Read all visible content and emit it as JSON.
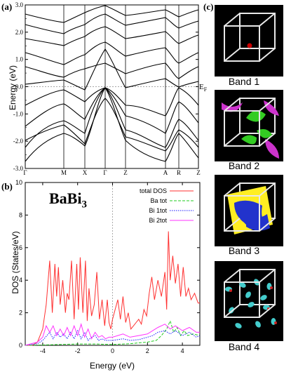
{
  "panels": {
    "a": "(a)",
    "b": "(b)",
    "c": "(c)"
  },
  "band_structure": {
    "ylabel": "Energy (eV)",
    "yticks": [
      "-3.0",
      "-2.0",
      "-1.0",
      "0.0",
      "1.0",
      "2.0",
      "3.0"
    ],
    "kpoints": [
      "Γ",
      "M",
      "X",
      "Γ",
      "Z",
      "A",
      "R",
      "Z"
    ],
    "fermi_label": "E",
    "fermi_sub": "F"
  },
  "chart_data": {
    "type": "line",
    "title": "BaBi",
    "title_sub": "3",
    "xlabel": "Energy (eV)",
    "ylabel": "DOS (States/eV)",
    "xlim": [
      -5,
      5
    ],
    "ylim": [
      0,
      10
    ],
    "xticks": [
      "-4",
      "-2",
      "0",
      "2",
      "4"
    ],
    "yticks": [
      "0",
      "2",
      "4",
      "6",
      "8",
      "10"
    ],
    "legend_position": "top-right",
    "series": [
      {
        "name": "total DOS",
        "color": "#ff3030",
        "style": "solid",
        "x": [
          -5,
          -4.6,
          -4.3,
          -4.0,
          -3.8,
          -3.6,
          -3.45,
          -3.3,
          -3.2,
          -3.1,
          -3.0,
          -2.85,
          -2.7,
          -2.6,
          -2.5,
          -2.35,
          -2.2,
          -2.05,
          -1.95,
          -1.85,
          -1.7,
          -1.55,
          -1.45,
          -1.35,
          -1.2,
          -1.05,
          -0.9,
          -0.75,
          -0.6,
          -0.45,
          -0.3,
          -0.2,
          -0.1,
          0.0,
          0.15,
          0.3,
          0.45,
          0.6,
          0.75,
          0.9,
          1.05,
          1.2,
          1.35,
          1.5,
          1.65,
          1.8,
          1.95,
          2.1,
          2.25,
          2.4,
          2.6,
          2.8,
          3.0,
          3.1,
          3.2,
          3.3,
          3.45,
          3.6,
          3.75,
          3.9,
          4.05,
          4.2,
          4.35,
          4.5,
          4.7,
          4.9,
          5.0
        ],
        "values": [
          0,
          0,
          0.2,
          1.0,
          2.5,
          5.2,
          2.0,
          5.0,
          3.0,
          4.8,
          2.5,
          4.0,
          2.0,
          3.2,
          2.8,
          5.2,
          1.6,
          5.0,
          2.2,
          5.4,
          2.0,
          5.2,
          1.5,
          3.5,
          1.8,
          2.5,
          4.5,
          1.6,
          2.8,
          1.2,
          2.8,
          1.4,
          1.0,
          1.6,
          2.2,
          2.8,
          1.6,
          3.0,
          1.4,
          2.0,
          1.0,
          1.2,
          1.4,
          1.6,
          1.3,
          2.2,
          1.8,
          3.2,
          4.2,
          2.8,
          4.0,
          3.0,
          4.5,
          2.2,
          7.0,
          4.0,
          5.5,
          3.8,
          5.0,
          3.0,
          4.8,
          3.0,
          3.5,
          2.8,
          3.2,
          2.6,
          2.6
        ]
      },
      {
        "name": "Ba tot",
        "color": "#22cc22",
        "style": "dashed",
        "x": [
          -5,
          -4,
          -3,
          -2,
          -1,
          0,
          1,
          1.5,
          2,
          2.5,
          2.8,
          3.1,
          3.3,
          3.5,
          3.7,
          3.9,
          4.1,
          4.3,
          4.6,
          5
        ],
        "values": [
          0,
          0.02,
          0.05,
          0.08,
          0.08,
          0.05,
          0.1,
          0.15,
          0.2,
          0.3,
          0.6,
          1.0,
          1.5,
          0.8,
          1.1,
          0.6,
          0.9,
          0.6,
          0.7,
          0.6
        ]
      },
      {
        "name": "Bi 1tot",
        "color": "#1a1aff",
        "style": "dotted",
        "x": [
          -5,
          -4.3,
          -4.0,
          -3.6,
          -3.4,
          -3.2,
          -3.0,
          -2.8,
          -2.6,
          -2.4,
          -2.2,
          -2.0,
          -1.8,
          -1.6,
          -1.4,
          -1.2,
          -1.0,
          -0.8,
          -0.6,
          -0.4,
          -0.2,
          0,
          0.3,
          0.6,
          1.0,
          1.5,
          2.0,
          2.3,
          2.6,
          3.0,
          3.3,
          3.6,
          4.0,
          4.4,
          4.8,
          5
        ],
        "values": [
          0,
          0.1,
          0.3,
          0.8,
          0.4,
          0.8,
          0.5,
          0.7,
          0.4,
          0.8,
          0.4,
          0.9,
          0.4,
          0.8,
          0.3,
          0.5,
          0.6,
          0.3,
          0.4,
          0.3,
          0.3,
          0.3,
          0.35,
          0.4,
          0.3,
          0.35,
          0.5,
          0.6,
          0.8,
          0.9,
          0.7,
          0.9,
          0.6,
          0.8,
          0.5,
          0.6
        ]
      },
      {
        "name": "Bi 2tot",
        "color": "#ff33ff",
        "style": "solid",
        "x": [
          -5,
          -4.3,
          -4.0,
          -3.8,
          -3.6,
          -3.4,
          -3.2,
          -3.0,
          -2.8,
          -2.6,
          -2.4,
          -2.2,
          -2.0,
          -1.8,
          -1.6,
          -1.4,
          -1.2,
          -1.0,
          -0.8,
          -0.6,
          -0.4,
          -0.2,
          0,
          0.3,
          0.6,
          1.0,
          1.5,
          2.0,
          2.3,
          2.6,
          3.0,
          3.3,
          3.6,
          4.0,
          4.4,
          4.8,
          5
        ],
        "values": [
          0,
          0.2,
          0.5,
          1.2,
          0.8,
          1.2,
          0.6,
          1.0,
          0.6,
          1.1,
          0.6,
          1.2,
          0.6,
          1.3,
          0.5,
          1.0,
          0.4,
          0.8,
          0.5,
          0.6,
          0.4,
          0.5,
          0.5,
          0.6,
          0.7,
          0.5,
          0.6,
          0.7,
          0.9,
          1.1,
          1.3,
          1.0,
          1.2,
          0.9,
          1.1,
          0.8,
          0.8
        ]
      }
    ]
  },
  "bands": [
    {
      "label": "Band 1",
      "blob": "#cc0000"
    },
    {
      "label": "Band 2",
      "blob": "#33cc22",
      "blob2": "#cc33cc"
    },
    {
      "label": "Band 3",
      "blob": "#ffee22",
      "blob2": "#2233cc"
    },
    {
      "label": "Band 4",
      "blob": "#44cccc",
      "blob2": "#cc2222"
    }
  ]
}
